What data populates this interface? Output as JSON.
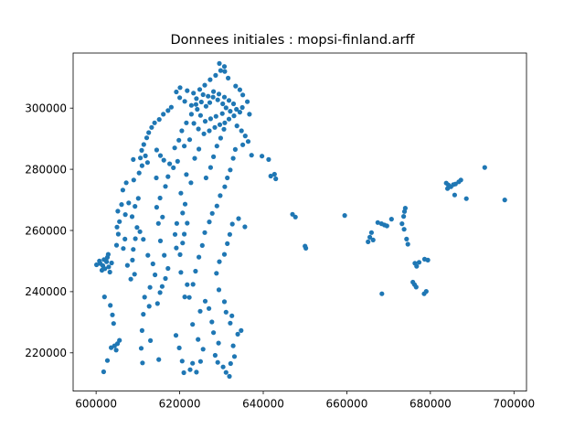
{
  "chart_data": {
    "type": "scatter",
    "title": "Donnees initiales : mopsi-finland.arff",
    "xlabel": "",
    "ylabel": "",
    "xlim": [
      594500,
      703000
    ],
    "ylim": [
      207500,
      318000
    ],
    "x_ticks": [
      600000,
      620000,
      640000,
      660000,
      680000,
      700000
    ],
    "x_tick_labels": [
      "600000",
      "620000",
      "640000",
      "660000",
      "680000",
      "700000"
    ],
    "y_ticks": [
      220000,
      240000,
      260000,
      280000,
      300000
    ],
    "y_tick_labels": [
      "220000",
      "240000",
      "260000",
      "280000",
      "300000"
    ],
    "grid": false,
    "legend": "none",
    "color": "#1f77b4",
    "series": [
      {
        "points": [
          [
            600100,
            248800
          ],
          [
            601000,
            249200
          ],
          [
            601600,
            248500
          ],
          [
            602100,
            247500
          ],
          [
            602500,
            249800
          ],
          [
            603000,
            248100
          ],
          [
            602700,
            251200
          ],
          [
            603300,
            246400
          ],
          [
            601900,
            250500
          ],
          [
            602900,
            252200
          ],
          [
            603700,
            249400
          ],
          [
            601400,
            247000
          ],
          [
            600800,
            250000
          ],
          [
            602000,
            238300
          ],
          [
            601800,
            213800
          ],
          [
            602700,
            217500
          ],
          [
            603400,
            235500
          ],
          [
            603900,
            232400
          ],
          [
            604200,
            229600
          ],
          [
            603600,
            221700
          ],
          [
            604400,
            222300
          ],
          [
            605100,
            223000
          ],
          [
            605600,
            224100
          ],
          [
            604800,
            220900
          ],
          [
            604900,
            255200
          ],
          [
            605300,
            258800
          ],
          [
            605000,
            261100
          ],
          [
            605600,
            262900
          ],
          [
            605200,
            266300
          ],
          [
            606100,
            268500
          ],
          [
            607000,
            265200
          ],
          [
            607800,
            269000
          ],
          [
            606400,
            273200
          ],
          [
            607200,
            275600
          ],
          [
            606900,
            257200
          ],
          [
            606500,
            254100
          ],
          [
            607500,
            248600
          ],
          [
            608300,
            244100
          ],
          [
            609200,
            245700
          ],
          [
            608700,
            250300
          ],
          [
            608900,
            253800
          ],
          [
            609400,
            257300
          ],
          [
            609800,
            261000
          ],
          [
            608600,
            264500
          ],
          [
            609300,
            267900
          ],
          [
            610100,
            270500
          ],
          [
            609000,
            276500
          ],
          [
            610300,
            278800
          ],
          [
            611000,
            281200
          ],
          [
            610600,
            283700
          ],
          [
            608900,
            283200
          ],
          [
            610900,
            286200
          ],
          [
            611400,
            288100
          ],
          [
            612100,
            290300
          ],
          [
            612600,
            292000
          ],
          [
            613300,
            293700
          ],
          [
            614000,
            295200
          ],
          [
            615100,
            296300
          ],
          [
            616100,
            298000
          ],
          [
            617200,
            299200
          ],
          [
            618000,
            300300
          ],
          [
            614500,
            286300
          ],
          [
            615400,
            284500
          ],
          [
            616200,
            283000
          ],
          [
            617600,
            281800
          ],
          [
            612300,
            282200
          ],
          [
            611800,
            284400
          ],
          [
            610500,
            259600
          ],
          [
            611300,
            257100
          ],
          [
            612400,
            251900
          ],
          [
            613600,
            249100
          ],
          [
            614100,
            245500
          ],
          [
            612900,
            241400
          ],
          [
            611600,
            238200
          ],
          [
            612700,
            235200
          ],
          [
            611300,
            232600
          ],
          [
            611000,
            227300
          ],
          [
            611100,
            216700
          ],
          [
            610800,
            221500
          ],
          [
            613000,
            224000
          ],
          [
            615000,
            217800
          ],
          [
            615300,
            239700
          ],
          [
            614700,
            236100
          ],
          [
            615800,
            241700
          ],
          [
            616600,
            244300
          ],
          [
            617200,
            247600
          ],
          [
            616300,
            251900
          ],
          [
            615400,
            256600
          ],
          [
            614900,
            262300
          ],
          [
            614500,
            267600
          ],
          [
            615300,
            270600
          ],
          [
            615900,
            264400
          ],
          [
            614400,
            277200
          ],
          [
            616600,
            274400
          ],
          [
            617200,
            277600
          ],
          [
            618500,
            280500
          ],
          [
            619500,
            282600
          ],
          [
            619300,
            262300
          ],
          [
            618900,
            258700
          ],
          [
            619200,
            254300
          ],
          [
            620100,
            252100
          ],
          [
            620700,
            255900
          ],
          [
            621100,
            258800
          ],
          [
            621800,
            262400
          ],
          [
            620700,
            265700
          ],
          [
            621300,
            268600
          ],
          [
            620300,
            272200
          ],
          [
            621600,
            278300
          ],
          [
            622700,
            275600
          ],
          [
            620300,
            246300
          ],
          [
            621800,
            242300
          ],
          [
            621200,
            238300
          ],
          [
            619100,
            225700
          ],
          [
            619900,
            221600
          ],
          [
            620600,
            217300
          ],
          [
            621000,
            213500
          ],
          [
            622500,
            214500
          ],
          [
            623100,
            216600
          ],
          [
            624000,
            213700
          ],
          [
            625000,
            217200
          ],
          [
            625600,
            221200
          ],
          [
            624400,
            224400
          ],
          [
            623100,
            229300
          ],
          [
            624900,
            233600
          ],
          [
            626100,
            236900
          ],
          [
            627000,
            234500
          ],
          [
            627700,
            230100
          ],
          [
            628100,
            226600
          ],
          [
            629300,
            223200
          ],
          [
            628500,
            219200
          ],
          [
            629100,
            216900
          ],
          [
            630400,
            215400
          ],
          [
            631100,
            213600
          ],
          [
            631900,
            212300
          ],
          [
            632200,
            216500
          ],
          [
            633100,
            218800
          ],
          [
            632800,
            222300
          ],
          [
            633900,
            226100
          ],
          [
            632100,
            229700
          ],
          [
            631100,
            233300
          ],
          [
            632500,
            232100
          ],
          [
            634700,
            227300
          ],
          [
            630700,
            236700
          ],
          [
            629400,
            240600
          ],
          [
            622300,
            238100
          ],
          [
            623200,
            242400
          ],
          [
            623800,
            246700
          ],
          [
            624600,
            251300
          ],
          [
            625400,
            255100
          ],
          [
            626000,
            259300
          ],
          [
            627100,
            262800
          ],
          [
            627800,
            265600
          ],
          [
            628900,
            268000
          ],
          [
            629700,
            271400
          ],
          [
            630800,
            274300
          ],
          [
            631400,
            277200
          ],
          [
            632100,
            279800
          ],
          [
            632800,
            283600
          ],
          [
            633300,
            286500
          ],
          [
            629500,
            249800
          ],
          [
            628800,
            246000
          ],
          [
            630700,
            252200
          ],
          [
            631400,
            255700
          ],
          [
            632000,
            258700
          ],
          [
            632600,
            262100
          ],
          [
            634100,
            263900
          ],
          [
            635600,
            261200
          ],
          [
            626300,
            277200
          ],
          [
            627400,
            280600
          ],
          [
            628100,
            284100
          ],
          [
            628900,
            287600
          ],
          [
            629800,
            290200
          ],
          [
            630600,
            293100
          ],
          [
            624600,
            286600
          ],
          [
            623600,
            283600
          ],
          [
            622400,
            289700
          ],
          [
            621100,
            287600
          ],
          [
            619800,
            289500
          ],
          [
            618800,
            287000
          ],
          [
            620500,
            292600
          ],
          [
            621600,
            295200
          ],
          [
            622800,
            298000
          ],
          [
            623900,
            301200
          ],
          [
            624000,
            303100
          ],
          [
            625200,
            302000
          ],
          [
            626300,
            300600
          ],
          [
            627200,
            301800
          ],
          [
            628000,
            303600
          ],
          [
            629100,
            302700
          ],
          [
            630300,
            301400
          ],
          [
            631100,
            300100
          ],
          [
            632100,
            299000
          ],
          [
            630200,
            298200
          ],
          [
            628700,
            297300
          ],
          [
            627400,
            296500
          ],
          [
            626100,
            295700
          ],
          [
            625000,
            297600
          ],
          [
            624200,
            299600
          ],
          [
            622800,
            300900
          ],
          [
            621200,
            302200
          ],
          [
            620000,
            303400
          ],
          [
            619200,
            305300
          ],
          [
            620100,
            306700
          ],
          [
            621800,
            305700
          ],
          [
            623300,
            304900
          ],
          [
            624800,
            306100
          ],
          [
            626000,
            307500
          ],
          [
            627300,
            309300
          ],
          [
            628600,
            310700
          ],
          [
            629800,
            312300
          ],
          [
            630700,
            313600
          ],
          [
            629500,
            314600
          ],
          [
            630800,
            312000
          ],
          [
            631600,
            309800
          ],
          [
            625600,
            304400
          ],
          [
            626800,
            303900
          ],
          [
            628100,
            305400
          ],
          [
            629400,
            304600
          ],
          [
            630700,
            303600
          ],
          [
            631800,
            302500
          ],
          [
            632900,
            301400
          ],
          [
            633600,
            299600
          ],
          [
            634400,
            298700
          ],
          [
            633000,
            297500
          ],
          [
            631800,
            296400
          ],
          [
            630800,
            295200
          ],
          [
            629600,
            294600
          ],
          [
            628400,
            293700
          ],
          [
            627100,
            292600
          ],
          [
            625800,
            291600
          ],
          [
            624500,
            293200
          ],
          [
            623400,
            295000
          ],
          [
            633700,
            294200
          ],
          [
            634800,
            292600
          ],
          [
            635700,
            290900
          ],
          [
            636400,
            289100
          ],
          [
            635100,
            288000
          ],
          [
            637200,
            284600
          ],
          [
            639700,
            284300
          ],
          [
            641300,
            283200
          ],
          [
            641800,
            277800
          ],
          [
            642700,
            278400
          ],
          [
            643000,
            276900
          ],
          [
            647000,
            265300
          ],
          [
            647700,
            264400
          ],
          [
            650000,
            254900
          ],
          [
            650200,
            254200
          ],
          [
            635100,
            304300
          ],
          [
            634400,
            306000
          ],
          [
            633400,
            307200
          ],
          [
            636200,
            302100
          ],
          [
            635000,
            300200
          ],
          [
            636700,
            298000
          ],
          [
            659500,
            264900
          ],
          [
            665100,
            256300
          ],
          [
            665500,
            257800
          ],
          [
            665900,
            259300
          ],
          [
            666300,
            256900
          ],
          [
            667400,
            262600
          ],
          [
            668300,
            262200
          ],
          [
            669000,
            261800
          ],
          [
            669600,
            261500
          ],
          [
            670700,
            263700
          ],
          [
            668400,
            239300
          ],
          [
            673200,
            262200
          ],
          [
            673600,
            264600
          ],
          [
            673800,
            266200
          ],
          [
            674000,
            267300
          ],
          [
            673700,
            260400
          ],
          [
            674300,
            257200
          ],
          [
            674600,
            255500
          ],
          [
            676300,
            249300
          ],
          [
            676700,
            248300
          ],
          [
            677300,
            249600
          ],
          [
            678600,
            250600
          ],
          [
            679400,
            250300
          ],
          [
            676200,
            242300
          ],
          [
            676600,
            241500
          ],
          [
            675800,
            243100
          ],
          [
            678500,
            239300
          ],
          [
            679000,
            240100
          ],
          [
            683800,
            275500
          ],
          [
            684300,
            274900
          ],
          [
            684900,
            274300
          ],
          [
            685500,
            275000
          ],
          [
            686000,
            275200
          ],
          [
            686800,
            275900
          ],
          [
            687300,
            276500
          ],
          [
            684100,
            273700
          ],
          [
            685800,
            271600
          ],
          [
            688600,
            270400
          ],
          [
            693000,
            280600
          ],
          [
            697800,
            270000
          ]
        ]
      }
    ]
  }
}
